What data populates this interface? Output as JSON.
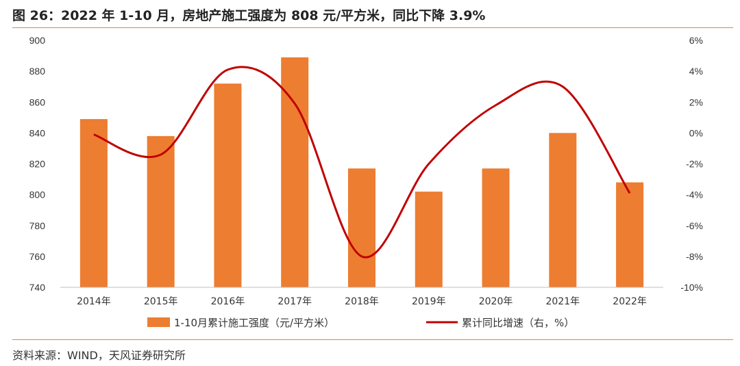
{
  "title": "图 26：2022 年 1-10 月，房地产施工强度为 808 元/平方米，同比下降 3.9%",
  "source": "资料来源：WIND，天风证券研究所",
  "colors": {
    "bar": "#ed7d31",
    "line": "#c00000",
    "accent": "#e8833a"
  },
  "chart_data": {
    "type": "bar",
    "categories": [
      "2014年",
      "2015年",
      "2016年",
      "2017年",
      "2018年",
      "2019年",
      "2020年",
      "2021年",
      "2022年"
    ],
    "series": [
      {
        "name": "1-10月累计施工强度（元/平方米）",
        "type": "bar",
        "axis": "left",
        "values": [
          849,
          838,
          872,
          889,
          817,
          802,
          817,
          840,
          808
        ]
      },
      {
        "name": "累计同比增速（右，%）",
        "type": "line",
        "axis": "right",
        "values": [
          -0.1,
          -1.4,
          4.1,
          1.9,
          -8.0,
          -2.0,
          1.8,
          3.0,
          -3.9
        ]
      }
    ],
    "left_axis": {
      "min": 740,
      "max": 900,
      "ticks": [
        "740",
        "760",
        "780",
        "800",
        "820",
        "840",
        "860",
        "880",
        "900"
      ]
    },
    "right_axis": {
      "min": -10,
      "max": 6,
      "ticks": [
        "-10%",
        "-8%",
        "-6%",
        "-4%",
        "-2%",
        "0%",
        "2%",
        "4%",
        "6%"
      ]
    },
    "grid": false,
    "legend_position": "bottom"
  }
}
